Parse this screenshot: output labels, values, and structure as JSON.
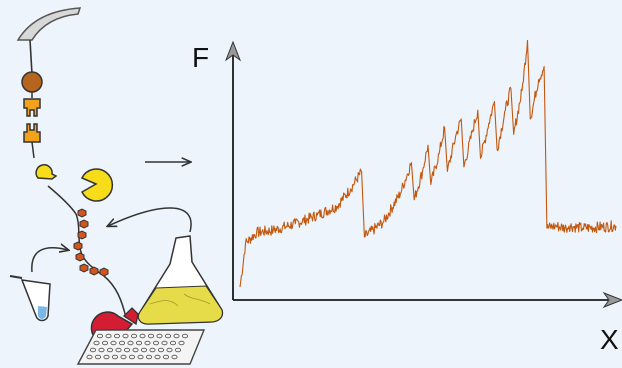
{
  "figure": {
    "axis_label_y": "F",
    "axis_label_x": "X"
  },
  "colors": {
    "background": "#eef4fb",
    "trace": "#c2570e",
    "axis": "#1a1a1a",
    "construct_brown": "#b5651d",
    "construct_orange": "#f3a21c",
    "pacman_yellow": "#f7dc1a",
    "linker_orange": "#d1561b",
    "pacman_red": "#d31d34",
    "flask_liquid": "#e6dc4a",
    "syringe_liquid": "#7ab6e8"
  },
  "chart_data": {
    "type": "line",
    "title": "",
    "xlabel": "X",
    "ylabel": "F",
    "description_series": [
      {
        "x": [
          0,
          2,
          6,
          12,
          20,
          28,
          35,
          40,
          44,
          45,
          52,
          58,
          62,
          63,
          66,
          68,
          69,
          72,
          74,
          75,
          78,
          80,
          81,
          84,
          86,
          87,
          90,
          92,
          93,
          96,
          98,
          99,
          102,
          104,
          105,
          108,
          110,
          111,
          114,
          118,
          119,
          124,
          136
        ],
        "y": [
          5,
          25,
          30,
          31,
          34,
          38,
          42,
          50,
          58,
          28,
          35,
          48,
          62,
          45,
          58,
          70,
          52,
          66,
          78,
          58,
          74,
          82,
          60,
          76,
          86,
          64,
          80,
          90,
          68,
          86,
          96,
          75,
          95,
          118,
          82,
          100,
          106,
          32,
          33,
          32,
          33,
          32,
          33
        ]
      }
    ],
    "grid": false,
    "legend": "none"
  }
}
